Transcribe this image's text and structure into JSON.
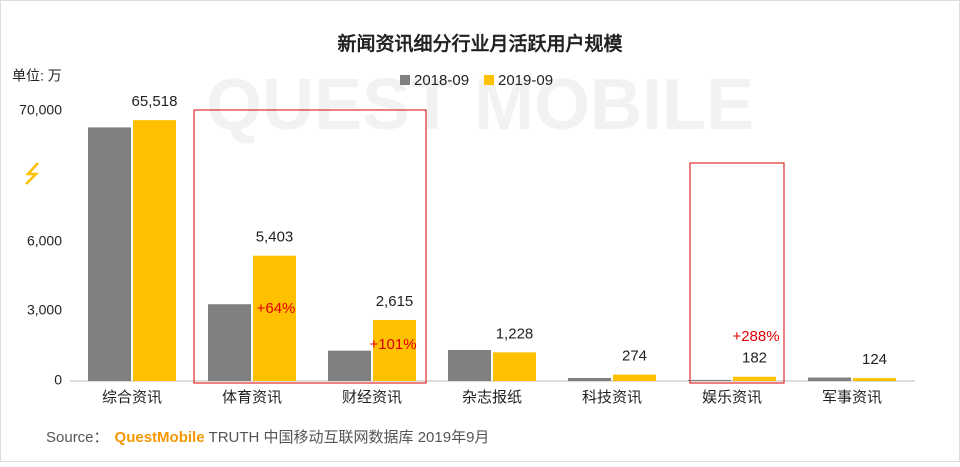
{
  "chart_data": {
    "type": "bar",
    "title": "新闻资讯细分行业月活跃用户规模",
    "unit_label": "单位: 万",
    "watermark": "QUEST MOBILE",
    "categories": [
      "综合资讯",
      "体育资讯",
      "财经资讯",
      "杂志报纸",
      "科技资讯",
      "娱乐资讯",
      "军事资讯"
    ],
    "series": [
      {
        "name": "2018-09",
        "color": "#808080",
        "values": [
          62000,
          3295,
          1301,
          1330,
          130,
          47,
          150
        ]
      },
      {
        "name": "2019-09",
        "color": "#ffc000",
        "values": [
          65518,
          5403,
          2615,
          1228,
          274,
          182,
          124
        ],
        "value_labels": [
          "65,518",
          "5,403",
          "2,615",
          "1,228",
          "274",
          "182",
          "124"
        ]
      }
    ],
    "ylim": [
      0,
      70000
    ],
    "yticks": [
      0,
      {
        "value": 3000,
        "label": "3,000"
      },
      {
        "value": 6000,
        "label": "6,000"
      },
      {
        "value": 70000,
        "label": "70,000"
      }
    ],
    "axis_break": true,
    "annotations": [
      "+64%",
      "+101%",
      "+288%"
    ],
    "source": {
      "prefix": "Source：",
      "brand": "QuestMobile",
      "text": "TRUTH 中国移动互联网数据库 2019年9月"
    }
  }
}
